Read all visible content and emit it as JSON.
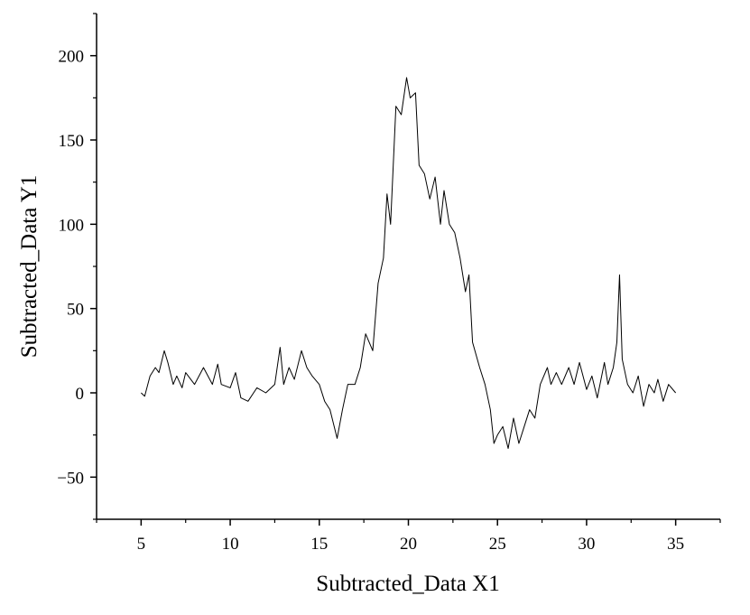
{
  "chart_data": {
    "type": "line",
    "xlabel": "Subtracted_Data X1",
    "ylabel": "Subtracted_Data Y1",
    "series": [
      {
        "color": "#000000",
        "x": [
          5,
          5.2,
          5.5,
          5.8,
          6.0,
          6.3,
          6.5,
          6.8,
          7,
          7.3,
          7.5,
          8,
          8.5,
          9,
          9.3,
          9.5,
          10,
          10.3,
          10.6,
          11,
          11.5,
          12,
          12.5,
          12.8,
          13,
          13.3,
          13.6,
          14,
          14.3,
          14.6,
          15,
          15.3,
          15.6,
          16,
          16.3,
          16.6,
          17,
          17.3,
          17.6,
          18,
          18.3,
          18.6,
          18.8,
          19,
          19.3,
          19.6,
          19.9,
          20.1,
          20.4,
          20.6,
          20.9,
          21.2,
          21.5,
          21.8,
          22,
          22.3,
          22.6,
          22.9,
          23.2,
          23.4,
          23.6,
          24,
          24.3,
          24.6,
          24.8,
          25,
          25.3,
          25.6,
          25.9,
          26.2,
          26.5,
          26.8,
          27.1,
          27.4,
          27.8,
          28,
          28.3,
          28.6,
          29,
          29.3,
          29.6,
          30,
          30.3,
          30.6,
          31,
          31.2,
          31.5,
          31.7,
          31.85,
          32,
          32.3,
          32.6,
          32.9,
          33.2,
          33.5,
          33.8,
          34,
          34.3,
          34.6,
          35
        ],
        "values": [
          0,
          -2,
          10,
          15,
          12,
          25,
          18,
          5,
          10,
          3,
          12,
          5,
          15,
          5,
          17,
          5,
          3,
          12,
          -3,
          -5,
          3,
          0,
          5,
          27,
          5,
          15,
          8,
          25,
          15,
          10,
          5,
          -5,
          -10,
          -27,
          -10,
          5,
          5,
          15,
          35,
          25,
          65,
          80,
          118,
          100,
          170,
          165,
          187,
          175,
          178,
          135,
          130,
          115,
          128,
          100,
          120,
          100,
          95,
          80,
          60,
          70,
          30,
          15,
          5,
          -10,
          -30,
          -25,
          -20,
          -33,
          -15,
          -30,
          -20,
          -10,
          -15,
          5,
          15,
          5,
          12,
          5,
          15,
          5,
          18,
          2,
          10,
          -3,
          18,
          5,
          15,
          30,
          70,
          20,
          5,
          0,
          10,
          -8,
          5,
          0,
          8,
          -5,
          5,
          0
        ]
      }
    ],
    "xlim": [
      2.5,
      37.5
    ],
    "ylim": [
      -75,
      225
    ],
    "xticks": [
      5,
      10,
      15,
      20,
      25,
      30,
      35
    ],
    "yticks": [
      {
        "value": -50,
        "label": "−50"
      },
      0,
      50,
      100,
      150,
      200
    ],
    "xminorticks": [
      2.5,
      7.5,
      12.5,
      17.5,
      22.5,
      27.5,
      32.5,
      37.5
    ],
    "yminorticks": [
      -75,
      -25,
      25,
      75,
      125,
      175,
      225
    ]
  }
}
